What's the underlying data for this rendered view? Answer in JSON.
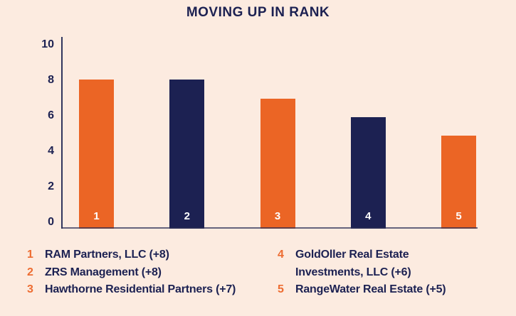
{
  "title": "MOVING UP IN RANK",
  "colors": {
    "background": "#fcebe0",
    "orange": "#eb6525",
    "navy": "#1c2152",
    "axis": "#31365f",
    "bar_label_text": "#ffffff",
    "legend_number": "#ed6c31"
  },
  "chart_data": {
    "type": "bar",
    "title": "MOVING UP IN RANK",
    "categories": [
      "1",
      "2",
      "3",
      "4",
      "5"
    ],
    "values": [
      8,
      8,
      7,
      6,
      5
    ],
    "bar_colors": [
      "#eb6525",
      "#1c2152",
      "#eb6525",
      "#1c2152",
      "#eb6525"
    ],
    "xlabel": "",
    "ylabel": "",
    "ylim": [
      0,
      10
    ],
    "yticks": [
      0,
      2,
      4,
      6,
      8,
      10
    ],
    "grid": false,
    "legend_position": "bottom"
  },
  "legend": {
    "columns": [
      {
        "items": [
          {
            "num": "1",
            "lines": [
              "RAM Partners, LLC (+8)"
            ]
          },
          {
            "num": "2",
            "lines": [
              "ZRS Management (+8)"
            ]
          },
          {
            "num": "3",
            "lines": [
              "Hawthorne Residential Partners (+7)"
            ]
          }
        ]
      },
      {
        "items": [
          {
            "num": "4",
            "lines": [
              "GoldOller Real Estate",
              "Investments, LLC (+6)"
            ]
          },
          {
            "num": "5",
            "lines": [
              "RangeWater Real Estate (+5)"
            ]
          }
        ]
      }
    ]
  }
}
